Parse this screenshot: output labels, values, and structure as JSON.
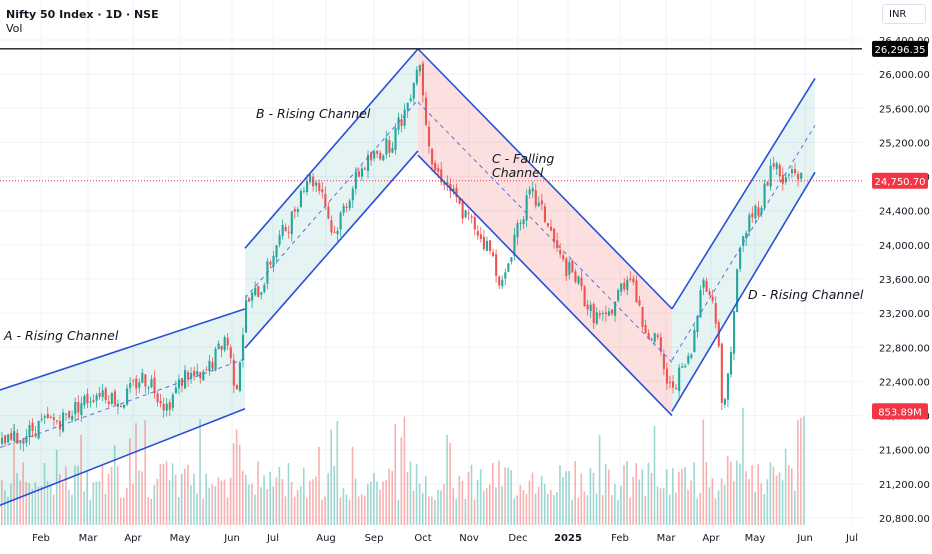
{
  "header": {
    "title": "Nifty 50 Index · 1D · NSE",
    "volume_label": "Vol",
    "currency": "INR"
  },
  "colors": {
    "up": "#26a69a",
    "down": "#ef5350",
    "channel_line": "#2a4fd6",
    "rising_fill": "rgba(38,166,154,0.12)",
    "falling_fill": "rgba(239,83,80,0.18)",
    "resistance_line": "#131722",
    "last_price_tag": "#f23645",
    "high_tag": "#000000"
  },
  "price_tags": {
    "high": "26,296.35",
    "last": "24,750.70",
    "volume": "853.89M"
  },
  "annotations": {
    "a": "A - Rising Channel",
    "b": "B - Rising Channel",
    "c_line1": "C - Falling",
    "c_line2": "Channel",
    "d": "D - Rising Channel"
  },
  "chart_data": {
    "type": "candlestick",
    "title": "Nifty 50 Index · 1D · NSE",
    "ylabel": "INR",
    "xlabel": "",
    "ylim": [
      20800,
      26400
    ],
    "y_ticks": [
      26400,
      26000,
      25600,
      25200,
      24800,
      24400,
      24000,
      23600,
      23200,
      22800,
      22400,
      22000,
      21600,
      21200,
      20800
    ],
    "y_tick_labels": [
      "26,400.00",
      "26,000.00",
      "25,600.00",
      "25,200.00",
      "24,800.00",
      "24,400.00",
      "24,000.00",
      "23,600.00",
      "23,200.00",
      "22,800.00",
      "22,400.00",
      "22,000.00",
      "21,600.00",
      "21,200.00",
      "20,800.00"
    ],
    "x_ticks": [
      {
        "label": "Feb",
        "x": 41
      },
      {
        "label": "Mar",
        "x": 88
      },
      {
        "label": "Apr",
        "x": 133
      },
      {
        "label": "May",
        "x": 180
      },
      {
        "label": "Jun",
        "x": 232
      },
      {
        "label": "Jul",
        "x": 273
      },
      {
        "label": "Aug",
        "x": 326
      },
      {
        "label": "Sep",
        "x": 374
      },
      {
        "label": "Oct",
        "x": 423
      },
      {
        "label": "Nov",
        "x": 469
      },
      {
        "label": "Dec",
        "x": 518
      },
      {
        "label": "2025",
        "x": 568,
        "bold": true
      },
      {
        "label": "Feb",
        "x": 620
      },
      {
        "label": "Mar",
        "x": 666
      },
      {
        "label": "Apr",
        "x": 711
      },
      {
        "label": "May",
        "x": 755
      },
      {
        "label": "Jun",
        "x": 805
      },
      {
        "label": "Jul",
        "x": 852
      }
    ],
    "grid": true,
    "horizontal_lines": [
      {
        "name": "all-time-high",
        "value": 26296.35,
        "color": "#131722",
        "style": "solid"
      },
      {
        "name": "last-price",
        "value": 24750.7,
        "color": "#f23645",
        "style": "dotted"
      }
    ],
    "last_price": 24750.7,
    "all_time_high": 26296.35,
    "last_volume": "853.89M",
    "price_path": [
      {
        "x": 0,
        "p": 21650
      },
      {
        "x": 20,
        "p": 21750
      },
      {
        "x": 40,
        "p": 21900
      },
      {
        "x": 60,
        "p": 21950
      },
      {
        "x": 80,
        "p": 22150
      },
      {
        "x": 100,
        "p": 22300
      },
      {
        "x": 120,
        "p": 22150
      },
      {
        "x": 140,
        "p": 22450
      },
      {
        "x": 150,
        "p": 22400
      },
      {
        "x": 165,
        "p": 22100
      },
      {
        "x": 185,
        "p": 22500
      },
      {
        "x": 200,
        "p": 22400
      },
      {
        "x": 215,
        "p": 22700
      },
      {
        "x": 225,
        "p": 22950
      },
      {
        "x": 235,
        "p": 22300
      },
      {
        "x": 245,
        "p": 23300
      },
      {
        "x": 260,
        "p": 23500
      },
      {
        "x": 275,
        "p": 24000
      },
      {
        "x": 290,
        "p": 24300
      },
      {
        "x": 305,
        "p": 24800
      },
      {
        "x": 320,
        "p": 24700
      },
      {
        "x": 332,
        "p": 24100
      },
      {
        "x": 345,
        "p": 24500
      },
      {
        "x": 360,
        "p": 24900
      },
      {
        "x": 375,
        "p": 25050
      },
      {
        "x": 390,
        "p": 25200
      },
      {
        "x": 405,
        "p": 25600
      },
      {
        "x": 418,
        "p": 26200
      },
      {
        "x": 425,
        "p": 25500
      },
      {
        "x": 432,
        "p": 24900
      },
      {
        "x": 445,
        "p": 24750
      },
      {
        "x": 460,
        "p": 24400
      },
      {
        "x": 475,
        "p": 24200
      },
      {
        "x": 490,
        "p": 23900
      },
      {
        "x": 502,
        "p": 23500
      },
      {
        "x": 515,
        "p": 24200
      },
      {
        "x": 530,
        "p": 24600
      },
      {
        "x": 545,
        "p": 24300
      },
      {
        "x": 560,
        "p": 23800
      },
      {
        "x": 575,
        "p": 23600
      },
      {
        "x": 590,
        "p": 23200
      },
      {
        "x": 605,
        "p": 23100
      },
      {
        "x": 620,
        "p": 23500
      },
      {
        "x": 630,
        "p": 23700
      },
      {
        "x": 640,
        "p": 23100
      },
      {
        "x": 655,
        "p": 22900
      },
      {
        "x": 668,
        "p": 22300
      },
      {
        "x": 680,
        "p": 22500
      },
      {
        "x": 690,
        "p": 22700
      },
      {
        "x": 700,
        "p": 23600
      },
      {
        "x": 710,
        "p": 23400
      },
      {
        "x": 718,
        "p": 22900
      },
      {
        "x": 722,
        "p": 21900
      },
      {
        "x": 728,
        "p": 22600
      },
      {
        "x": 738,
        "p": 23900
      },
      {
        "x": 748,
        "p": 24300
      },
      {
        "x": 760,
        "p": 24500
      },
      {
        "x": 772,
        "p": 25000
      },
      {
        "x": 782,
        "p": 24700
      },
      {
        "x": 792,
        "p": 24900
      },
      {
        "x": 802,
        "p": 24750
      }
    ],
    "channels": [
      {
        "name": "A - Rising Channel",
        "type": "rising",
        "upper": [
          [
            0,
            22300
          ],
          [
            245,
            23250
          ]
        ],
        "lower": [
          [
            0,
            20950
          ],
          [
            245,
            22080
          ]
        ]
      },
      {
        "name": "B - Rising Channel",
        "type": "rising",
        "upper": [
          [
            245,
            23960
          ],
          [
            418,
            26296
          ]
        ],
        "lower": [
          [
            245,
            22790
          ],
          [
            418,
            25100
          ]
        ]
      },
      {
        "name": "C - Falling Channel",
        "type": "falling",
        "upper": [
          [
            418,
            26296
          ],
          [
            672,
            23250
          ]
        ],
        "lower": [
          [
            418,
            25050
          ],
          [
            672,
            22000
          ]
        ]
      },
      {
        "name": "D - Rising Channel",
        "type": "rising",
        "upper": [
          [
            672,
            23250
          ],
          [
            815,
            25950
          ]
        ],
        "lower": [
          [
            672,
            22050
          ],
          [
            815,
            24850
          ]
        ]
      }
    ]
  }
}
